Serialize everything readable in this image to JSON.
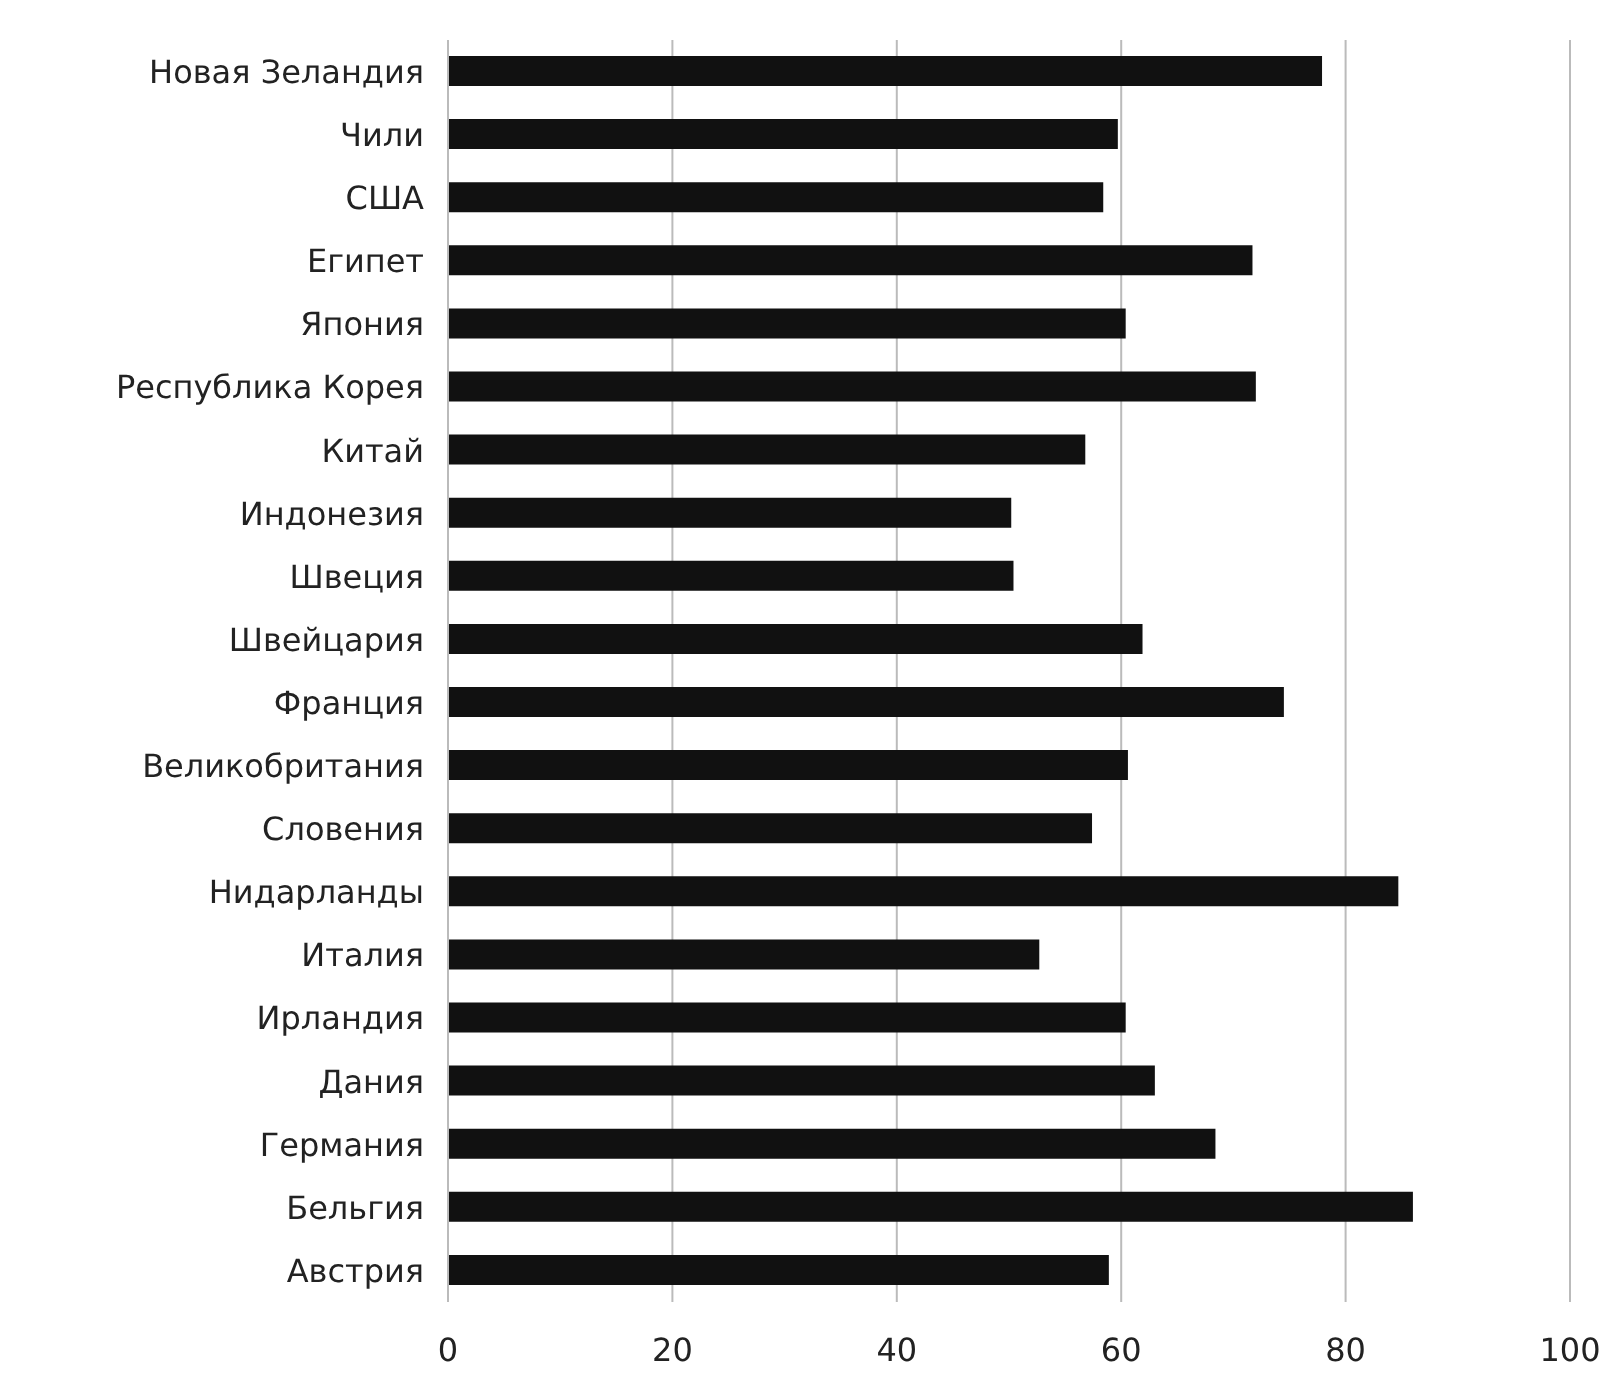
{
  "chart_data": {
    "type": "bar",
    "orientation": "horizontal",
    "categories": [
      "Новая Зеландия",
      "Чили",
      "США",
      "Египет",
      "Япония",
      "Республика Корея",
      "Китай",
      "Индонезия",
      "Швеция",
      "Швейцария",
      "Франция",
      "Великобритания",
      "Словения",
      "Нидарланды",
      "Италия",
      "Ирландия",
      "Дания",
      "Германия",
      "Бельгия",
      "Австрия"
    ],
    "values": [
      77.9,
      59.7,
      58.4,
      71.7,
      60.4,
      72.0,
      56.8,
      50.2,
      50.4,
      61.9,
      74.5,
      60.6,
      57.4,
      84.7,
      52.7,
      60.4,
      63.0,
      68.4,
      86.0,
      58.9
    ],
    "color": "#111111",
    "xlim": [
      0,
      100
    ],
    "xticks": [
      0,
      20,
      40,
      60,
      80,
      100
    ],
    "grid": "x",
    "legend": false
  }
}
